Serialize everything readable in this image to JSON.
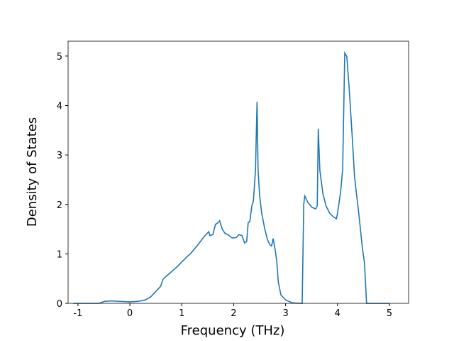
{
  "chart_data": {
    "type": "line",
    "x_label": "Frequency (THz)",
    "y_label": "Density of States",
    "x": [
      -1.09,
      -0.59,
      -0.49,
      -0.34,
      -0.22,
      0,
      0.16,
      0.3,
      0.4,
      0.5,
      0.59,
      0.64,
      0.68,
      0.78,
      0.92,
      1.05,
      1.19,
      1.33,
      1.43,
      1.52,
      1.54,
      1.6,
      1.65,
      1.69,
      1.73,
      1.78,
      1.83,
      1.9,
      1.97,
      2.05,
      2.1,
      2.16,
      2.21,
      2.25,
      2.28,
      2.31,
      2.35,
      2.38,
      2.42,
      2.45,
      2.47,
      2.5,
      2.54,
      2.6,
      2.65,
      2.7,
      2.73,
      2.76,
      2.8,
      2.83,
      2.86,
      2.91,
      3.0,
      3.13,
      3.32,
      3.35,
      3.37,
      3.43,
      3.51,
      3.58,
      3.61,
      3.63,
      3.66,
      3.72,
      3.78,
      3.85,
      3.92,
      3.98,
      4.0,
      4.06,
      4.1,
      4.14,
      4.18,
      4.23,
      4.29,
      4.33,
      4.41,
      4.48,
      4.52,
      4.56,
      5.0
    ],
    "series": [
      {
        "color": "#1f77b4",
        "values": [
          0,
          0,
          0.04,
          0.05,
          0.04,
          0.03,
          0.04,
          0.07,
          0.13,
          0.24,
          0.34,
          0.49,
          0.53,
          0.62,
          0.75,
          0.89,
          1.03,
          1.21,
          1.35,
          1.45,
          1.37,
          1.39,
          1.6,
          1.62,
          1.67,
          1.5,
          1.42,
          1.38,
          1.32,
          1.33,
          1.39,
          1.37,
          1.22,
          1.25,
          1.64,
          1.65,
          1.97,
          2.07,
          2.69,
          4.07,
          2.7,
          2.18,
          1.82,
          1.5,
          1.29,
          1.18,
          1.16,
          1.31,
          1.08,
          0.85,
          0.43,
          0.17,
          0.07,
          0.01,
          0,
          2.01,
          2.17,
          2.04,
          1.94,
          1.91,
          1.97,
          3.53,
          2.69,
          2.21,
          1.97,
          1.82,
          1.75,
          1.71,
          1.82,
          2.25,
          2.72,
          5.06,
          4.99,
          4.27,
          3.26,
          2.54,
          1.82,
          1.11,
          0.82,
          0,
          0
        ]
      }
    ],
    "xlim": [
      -1.19,
      5.37
    ],
    "ylim": [
      0,
      5.3
    ],
    "xticks": [
      -1,
      0,
      1,
      2,
      3,
      4,
      5
    ],
    "yticks": [
      0,
      1,
      2,
      3,
      4,
      5
    ]
  }
}
